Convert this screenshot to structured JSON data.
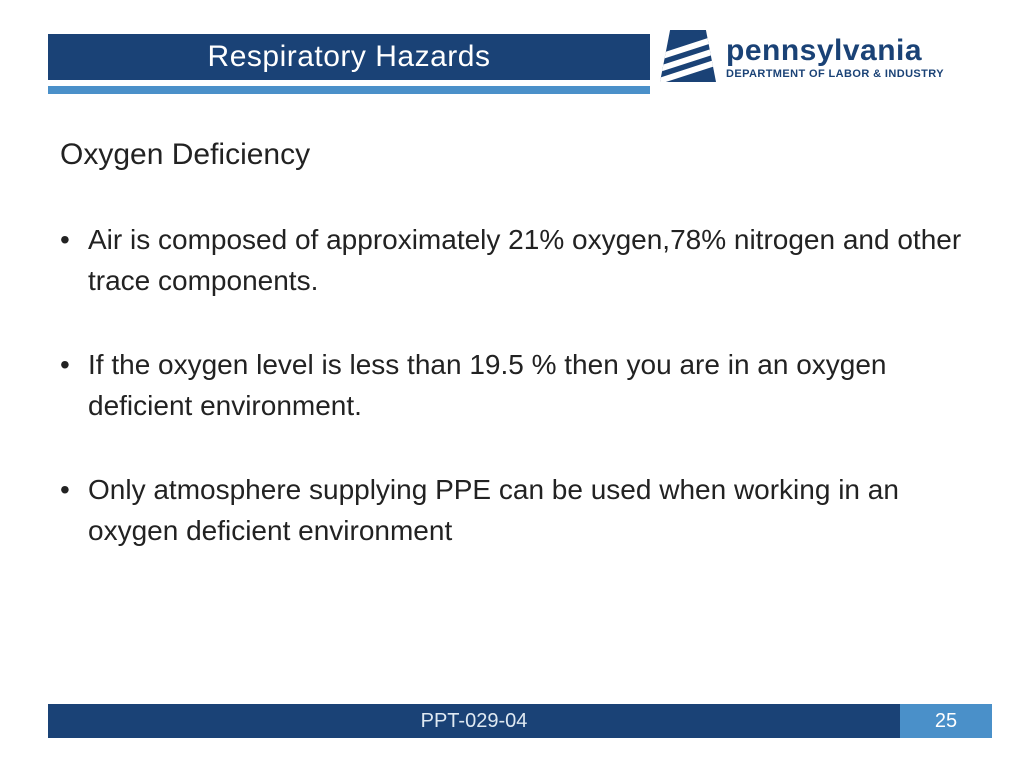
{
  "colors": {
    "band_dark": "#1a4276",
    "band_light": "#4a90c9",
    "bg": "#ffffff",
    "text": "#222222",
    "header_text": "#ffffff",
    "footer_text": "#dfe9f2"
  },
  "typography": {
    "title_fontsize": 30,
    "body_fontsize": 28,
    "footer_fontsize": 20,
    "logo_state_fontsize": 30,
    "logo_dept_fontsize": 11
  },
  "header": {
    "title": "Respiratory Hazards"
  },
  "logo": {
    "state": "pennsylvania",
    "dept": "DEPARTMENT OF LABOR & INDUSTRY"
  },
  "content": {
    "subtitle": "Oxygen Deficiency",
    "bullets": [
      "Air is composed of approximately 21% oxygen,78% nitrogen and other trace components.",
      "If the oxygen level is less than 19.5 % then you are in an oxygen deficient environment.",
      "Only atmosphere supplying PPE can be used when working in an oxygen deficient environment"
    ]
  },
  "footer": {
    "code": "PPT-029-04",
    "page": "25"
  }
}
